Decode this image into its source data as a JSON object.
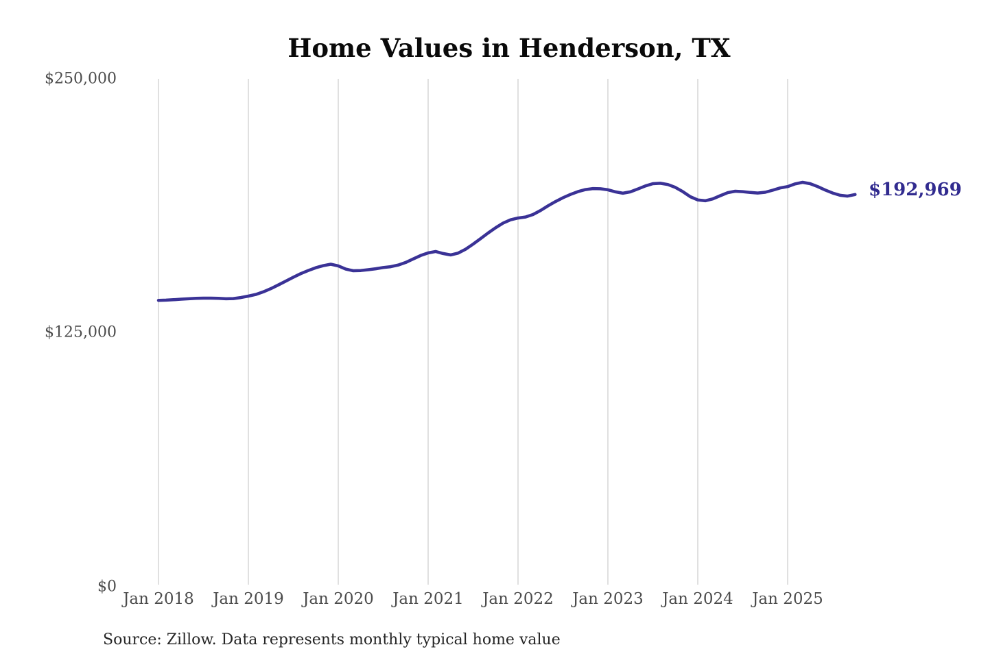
{
  "chart": {
    "title": "Home Values in Henderson, TX",
    "end_label": "$192,969",
    "source_note": "Source: Zillow. Data represents monthly typical home value",
    "colors": {
      "line": "#3a3296",
      "value_label": "#312b8f",
      "grid": "#cbcbcb",
      "axis_label": "#4c4c4c",
      "title": "#0a0a0a",
      "source": "#262626",
      "background": "#ffffff"
    }
  },
  "chart_data": {
    "type": "line",
    "title": "Home Values in Henderson, TX",
    "xlabel": "",
    "ylabel": "",
    "unit": "USD",
    "frequency": "monthly",
    "x_start_month": "2018-01",
    "x_end_month": "2025-10",
    "x_tick_labels": [
      "Jan 2018",
      "Jan 2019",
      "Jan 2020",
      "Jan 2021",
      "Jan 2022",
      "Jan 2023",
      "Jan 2024",
      "Jan 2025"
    ],
    "y_ticks": [
      0,
      125000,
      250000
    ],
    "y_tick_labels": [
      "$0",
      "$125,000",
      "$250,000"
    ],
    "ylim": [
      0,
      250000
    ],
    "grid": "vertical-only",
    "legend_position": "none",
    "series": [
      {
        "name": "Typical home value",
        "values": [
          140800,
          140900,
          141100,
          141400,
          141600,
          141800,
          141900,
          141900,
          141800,
          141600,
          141700,
          142200,
          142900,
          143700,
          145000,
          146600,
          148400,
          150300,
          152200,
          154000,
          155500,
          156900,
          157900,
          158600,
          157800,
          156200,
          155400,
          155500,
          155900,
          156400,
          157000,
          157400,
          158200,
          159500,
          161200,
          162900,
          164200,
          164900,
          163900,
          163200,
          164100,
          166000,
          168500,
          171200,
          174000,
          176600,
          178900,
          180500,
          181400,
          181900,
          183100,
          185100,
          187400,
          189500,
          191400,
          193000,
          194400,
          195400,
          195900,
          195800,
          195300,
          194300,
          193600,
          194300,
          195700,
          197200,
          198300,
          198500,
          197900,
          196500,
          194400,
          191900,
          190300,
          189900,
          190800,
          192400,
          193900,
          194600,
          194400,
          194000,
          193700,
          194100,
          195100,
          196200,
          196900,
          198200,
          199000,
          198300,
          196900,
          195200,
          193700,
          192600,
          192200,
          192969
        ]
      }
    ],
    "final_value": 192969,
    "final_value_label": "$192,969",
    "source": "Source: Zillow. Data represents monthly typical home value"
  }
}
